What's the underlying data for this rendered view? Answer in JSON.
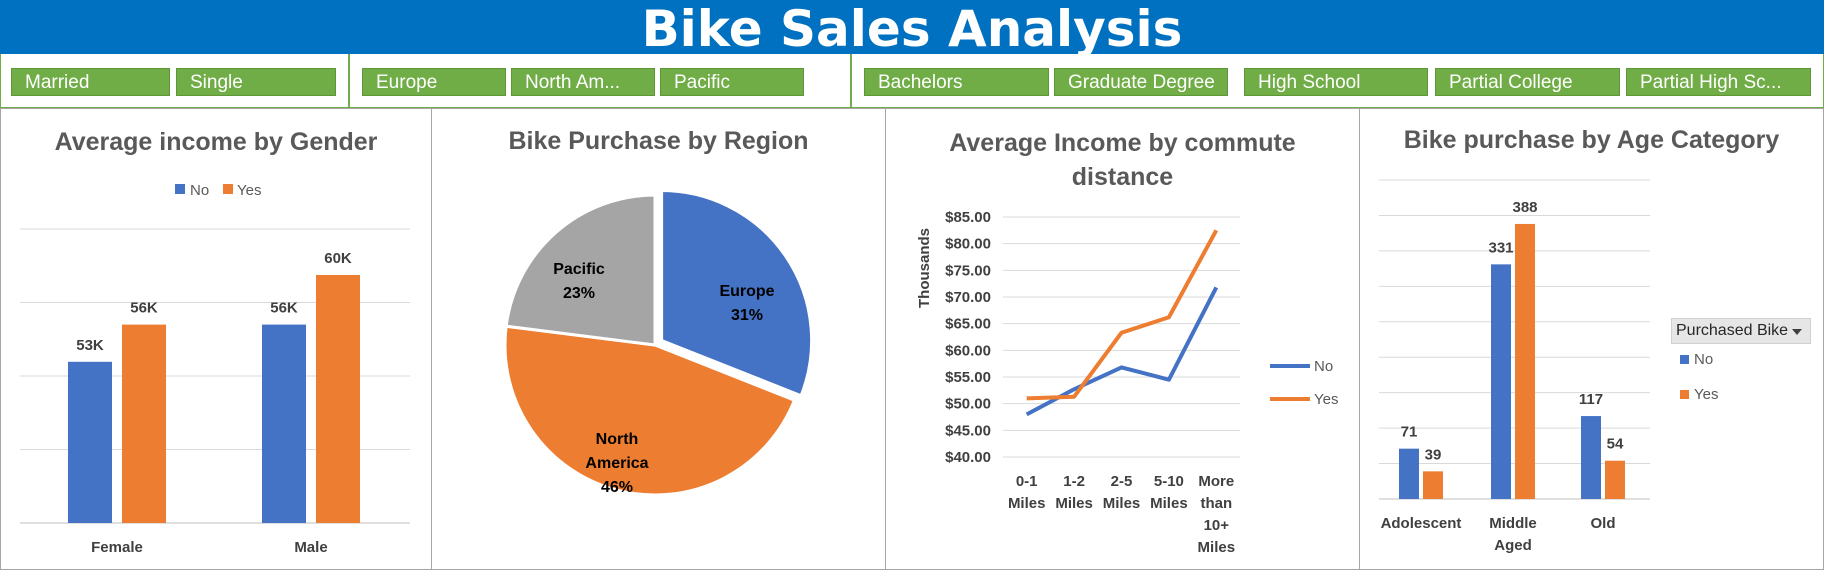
{
  "title": "Bike Sales Analysis",
  "colors": {
    "banner": "#0070c0",
    "slicer": "#70ad47",
    "no": "#4472c4",
    "yes": "#ed7d31",
    "pacific": "#a5a5a5"
  },
  "slicers": {
    "marital": [
      "Married",
      "Single"
    ],
    "region": [
      "Europe",
      "North Am...",
      "Pacific"
    ],
    "education": [
      "Bachelors",
      "Graduate Degree",
      "High School",
      "Partial College",
      "Partial High Sc..."
    ]
  },
  "filter": {
    "label": "Purchased Bike"
  },
  "chart_data": [
    {
      "type": "bar",
      "title": "Average income by Gender",
      "categories": [
        "Female",
        "Male"
      ],
      "series": [
        {
          "name": "No",
          "values": [
            53000,
            56000
          ],
          "labels": [
            "53K",
            "56K"
          ]
        },
        {
          "name": "Yes",
          "values": [
            56000,
            60000
          ],
          "labels": [
            "56K",
            "60K"
          ]
        }
      ],
      "ylim": [
        40000,
        60000
      ],
      "legend": "top",
      "grid": true
    },
    {
      "type": "pie",
      "title": "Bike Purchase by Region",
      "slices": [
        {
          "name": "Europe",
          "value": 31,
          "label": "31%"
        },
        {
          "name": "North America",
          "value": 46,
          "label": "46%"
        },
        {
          "name": "Pacific",
          "value": 23,
          "label": "23%"
        }
      ]
    },
    {
      "type": "line",
      "title": "Average Income by commute distance",
      "categories": [
        "0-1 Miles",
        "1-2 Miles",
        "2-5 Miles",
        "5-10 Miles",
        "More than 10+ Miles"
      ],
      "series": [
        {
          "name": "No",
          "values": [
            48,
            52.7,
            56.8,
            54.5,
            71.8
          ]
        },
        {
          "name": "Yes",
          "values": [
            51,
            51.3,
            63.3,
            66.2,
            82.5
          ]
        }
      ],
      "ylabel": "Thousands",
      "ylim": [
        40,
        85
      ],
      "yticks": [
        "$40.00",
        "$45.00",
        "$50.00",
        "$55.00",
        "$60.00",
        "$65.00",
        "$70.00",
        "$75.00",
        "$80.00",
        "$85.00"
      ],
      "legend": "right",
      "grid": true
    },
    {
      "type": "bar",
      "title": "Bike purchase by Age Category",
      "categories": [
        "Adolescent",
        "Middle Aged",
        "Old"
      ],
      "series": [
        {
          "name": "No",
          "values": [
            71,
            331,
            117
          ]
        },
        {
          "name": "Yes",
          "values": [
            39,
            388,
            54
          ]
        }
      ],
      "ylim": [
        0,
        450
      ],
      "legend": "right",
      "grid": true
    }
  ]
}
